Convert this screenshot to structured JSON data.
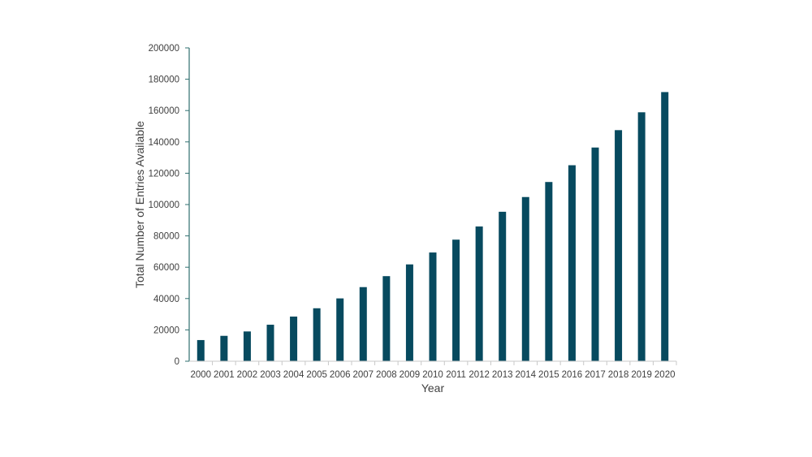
{
  "chart_data": {
    "type": "bar",
    "title": "",
    "xlabel": "Year",
    "ylabel": "Total Number of Entries Available",
    "categories": [
      "2000",
      "2001",
      "2002",
      "2003",
      "2004",
      "2005",
      "2006",
      "2007",
      "2008",
      "2009",
      "2010",
      "2011",
      "2012",
      "2013",
      "2014",
      "2015",
      "2016",
      "2017",
      "2018",
      "2019",
      "2020"
    ],
    "values": [
      13500,
      16200,
      19000,
      23300,
      28500,
      33800,
      40100,
      47300,
      54300,
      61800,
      69400,
      77600,
      86000,
      95400,
      104800,
      114400,
      125100,
      136400,
      147500,
      158900,
      171800
    ],
    "ylim": [
      0,
      200000
    ],
    "yticks": [
      "0",
      "20000",
      "40000",
      "60000",
      "80000",
      "100000",
      "120000",
      "140000",
      "160000",
      "180000",
      "200000"
    ],
    "grid": false,
    "legend": "none",
    "colors": {
      "bar": "#074a5f",
      "axis": "#2f6f6f",
      "text": "#404040"
    }
  }
}
